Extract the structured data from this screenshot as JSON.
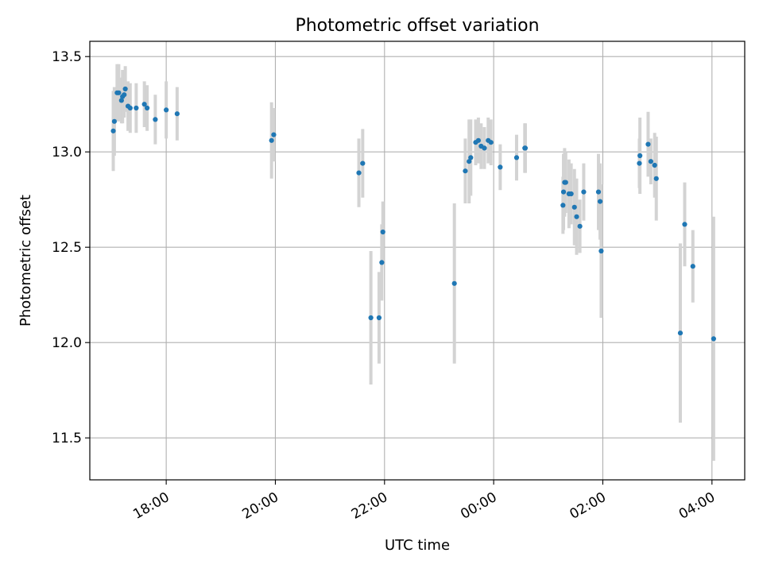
{
  "chart_data": {
    "type": "scatter",
    "title": "Photometric offset variation",
    "xlabel": "UTC time",
    "ylabel": "Photometric offset",
    "grid": true,
    "x_unit": "hours since 00:00 UTC (negative = previous day)",
    "xlim": [
      -7.4,
      4.6
    ],
    "ylim": [
      11.28,
      13.58
    ],
    "x_ticks": [
      {
        "value": -6,
        "label": "18:00"
      },
      {
        "value": -4,
        "label": "20:00"
      },
      {
        "value": -2,
        "label": "22:00"
      },
      {
        "value": 0,
        "label": "00:00"
      },
      {
        "value": 2,
        "label": "02:00"
      },
      {
        "value": 4,
        "label": "04:00"
      }
    ],
    "y_ticks": [
      {
        "value": 11.5,
        "label": "11.5"
      },
      {
        "value": 12.0,
        "label": "12.0"
      },
      {
        "value": 12.5,
        "label": "12.5"
      },
      {
        "value": 13.0,
        "label": "13.0"
      },
      {
        "value": 13.5,
        "label": "13.5"
      }
    ],
    "colors": {
      "point": "#1f77b4",
      "errorbar": "#d3d3d3",
      "grid": "#b0b0b0"
    },
    "series": [
      {
        "name": "Photometric offset",
        "x": [
          -6.97,
          -6.95,
          -6.9,
          -6.87,
          -6.82,
          -6.8,
          -6.77,
          -6.75,
          -6.7,
          -6.66,
          -6.55,
          -6.4,
          -6.35,
          -6.2,
          -6.0,
          -5.8,
          -4.07,
          -4.03,
          -2.47,
          -2.4,
          -2.25,
          -2.1,
          -2.05,
          -2.03,
          -0.72,
          -0.52,
          -0.45,
          -0.42,
          -0.33,
          -0.28,
          -0.23,
          -0.17,
          -0.1,
          -0.05,
          0.12,
          0.42,
          0.57,
          0.58,
          1.27,
          1.28,
          1.3,
          1.32,
          1.38,
          1.42,
          1.48,
          1.52,
          1.58,
          1.65,
          1.92,
          1.95,
          1.97,
          2.67,
          2.68,
          2.83,
          2.88,
          2.95,
          2.98,
          3.42,
          3.5,
          3.65,
          4.03
        ],
        "y": [
          13.11,
          13.16,
          13.31,
          13.31,
          13.27,
          13.29,
          13.3,
          13.33,
          13.24,
          13.23,
          13.23,
          13.25,
          13.23,
          13.17,
          13.22,
          13.2,
          13.06,
          13.09,
          12.89,
          12.94,
          12.13,
          12.13,
          12.42,
          12.58,
          12.31,
          12.9,
          12.95,
          12.97,
          13.05,
          13.06,
          13.03,
          13.02,
          13.06,
          13.05,
          12.92,
          12.97,
          13.02,
          13.02,
          12.72,
          12.79,
          12.84,
          12.84,
          12.78,
          12.78,
          12.71,
          12.66,
          12.61,
          12.79,
          12.79,
          12.74,
          12.48,
          12.94,
          12.98,
          13.04,
          12.95,
          12.93,
          12.86,
          12.05,
          12.62,
          12.4,
          12.02
        ],
        "err": [
          0.21,
          0.18,
          0.15,
          0.15,
          0.12,
          0.14,
          0.12,
          0.12,
          0.13,
          0.13,
          0.13,
          0.12,
          0.12,
          0.13,
          0.15,
          0.14,
          0.2,
          0.14,
          0.18,
          0.18,
          0.35,
          0.24,
          0.2,
          0.16,
          0.42,
          0.17,
          0.22,
          0.2,
          0.12,
          0.12,
          0.12,
          0.11,
          0.12,
          0.12,
          0.12,
          0.12,
          0.13,
          0.13,
          0.15,
          0.2,
          0.18,
          0.16,
          0.18,
          0.16,
          0.2,
          0.2,
          0.14,
          0.15,
          0.2,
          0.2,
          0.35,
          0.13,
          0.2,
          0.17,
          0.12,
          0.17,
          0.22,
          0.47,
          0.22,
          0.19,
          0.64
        ]
      }
    ]
  }
}
